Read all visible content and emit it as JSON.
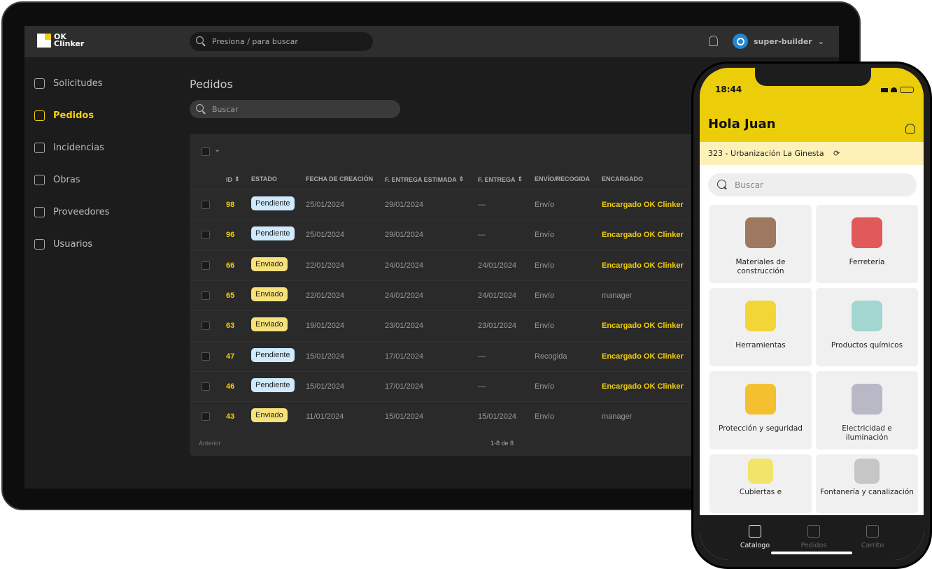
{
  "web": {
    "logo": "OK Clinker",
    "global_search_placeholder": "Presiona / para buscar",
    "user": "super-builder",
    "sidebar": [
      {
        "label": "Solicitudes",
        "icon": "user-plus-icon"
      },
      {
        "label": "Pedidos",
        "icon": "clipboard-icon",
        "active": true
      },
      {
        "label": "Incidencias",
        "icon": "warning-icon"
      },
      {
        "label": "Obras",
        "icon": "location-pin-icon"
      },
      {
        "label": "Proveedores",
        "icon": "building-icon"
      },
      {
        "label": "Usuarios",
        "icon": "user-icon"
      }
    ],
    "page_title": "Pedidos",
    "search_placeholder": "Buscar",
    "columns": [
      "ID",
      "ESTADO",
      "FECHA DE CREACIÓN",
      "F. ENTREGA ESTIMADA",
      "F. ENTREGA",
      "ENVÍO/RECOGIDA",
      "ENCARGADO"
    ],
    "rows": [
      {
        "id": "98",
        "estado": "Pendiente",
        "creacion": "25/01/2024",
        "estimada": "29/01/2024",
        "entrega": "—",
        "envio": "Envío",
        "encargado": "Encargado OK Clinker"
      },
      {
        "id": "96",
        "estado": "Pendiente",
        "creacion": "25/01/2024",
        "estimada": "29/01/2024",
        "entrega": "—",
        "envio": "Envío",
        "encargado": "Encargado OK Clinker"
      },
      {
        "id": "66",
        "estado": "Enviado",
        "creacion": "22/01/2024",
        "estimada": "24/01/2024",
        "entrega": "24/01/2024",
        "envio": "Envío",
        "encargado": "Encargado OK Clinker"
      },
      {
        "id": "65",
        "estado": "Enviado",
        "creacion": "22/01/2024",
        "estimada": "24/01/2024",
        "entrega": "24/01/2024",
        "envio": "Envío",
        "encargado": "manager"
      },
      {
        "id": "63",
        "estado": "Enviado",
        "creacion": "19/01/2024",
        "estimada": "23/01/2024",
        "entrega": "23/01/2024",
        "envio": "Envío",
        "encargado": "Encargado OK Clinker"
      },
      {
        "id": "47",
        "estado": "Pendiente",
        "creacion": "15/01/2024",
        "estimada": "17/01/2024",
        "entrega": "—",
        "envio": "Recogida",
        "encargado": "Encargado OK Clinker"
      },
      {
        "id": "46",
        "estado": "Pendiente",
        "creacion": "15/01/2024",
        "estimada": "17/01/2024",
        "entrega": "—",
        "envio": "Envío",
        "encargado": "Encargado OK Clinker"
      },
      {
        "id": "43",
        "estado": "Enviado",
        "creacion": "11/01/2024",
        "estimada": "15/01/2024",
        "entrega": "15/01/2024",
        "envio": "Envío",
        "encargado": "manager"
      }
    ],
    "prev": "Anterior",
    "pagination": "1-8 de 8",
    "colors": {
      "accent": "#f2cf0a",
      "pendiente": "#cfeafd",
      "enviado": "#f7e27a"
    }
  },
  "mobile": {
    "time": "18:44",
    "greeting": "Hola Juan",
    "address": "323 - Urbanización La Ginesta",
    "search_placeholder": "Buscar",
    "categories": [
      "Materiales de construcción",
      "Ferreteria",
      "Herramientas",
      "Productos químicos",
      "Protección y seguridad",
      "Electricidad e iluminación",
      "Cubiertas e",
      "Fontanería y canalización"
    ],
    "nav": [
      "Catalogo",
      "Pedidos",
      "Carrito"
    ],
    "colors": {
      "header": "#eccd0a",
      "address_bar": "#fdf1b8"
    }
  }
}
